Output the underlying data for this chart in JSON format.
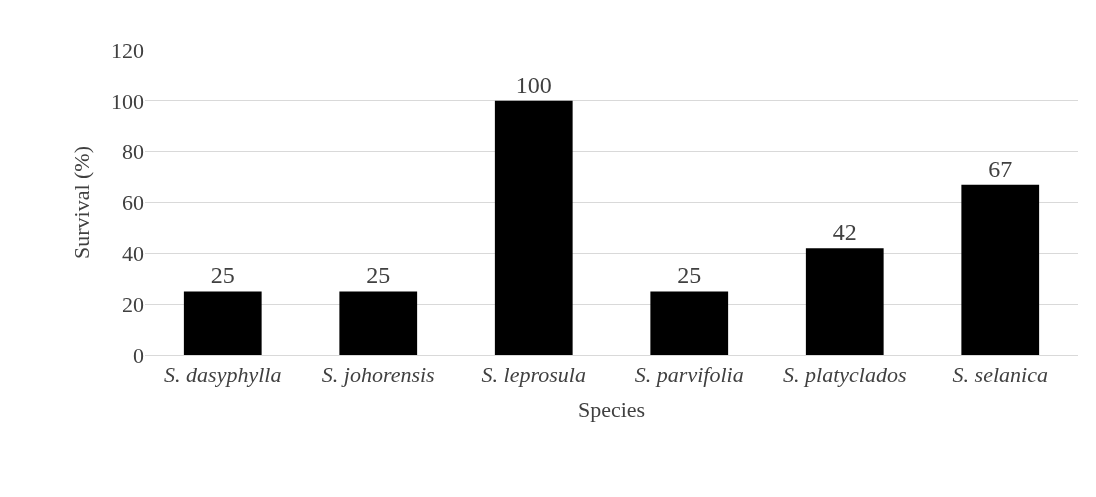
{
  "chart_data": {
    "type": "bar",
    "xlabel": "Species",
    "ylabel": "Survival (%)",
    "categories": [
      "S. dasyphylla",
      "S. johorensis",
      "S. leprosula",
      "S. parvifolia",
      "S. platyclados",
      "S. selanica"
    ],
    "values": [
      25,
      25,
      100,
      25,
      42,
      67
    ],
    "color": "#000000",
    "ylim": [
      0,
      120
    ],
    "yticks": [
      0,
      20,
      40,
      60,
      80,
      100,
      120
    ],
    "grid": "y",
    "data_labels": true,
    "legend": false
  }
}
